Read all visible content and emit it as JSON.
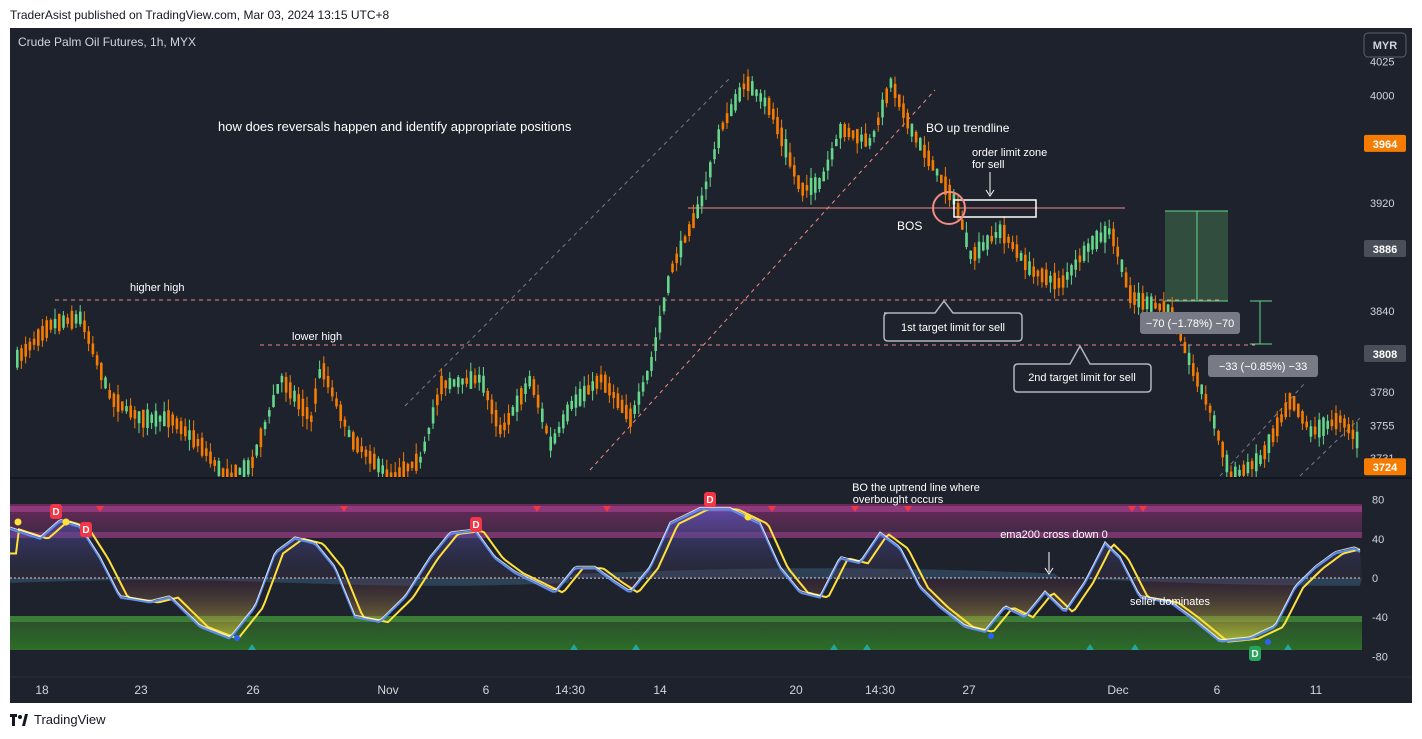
{
  "header": {
    "text": "TraderAsist published on TradingView.com, Mar 03, 2024 13:15 UTC+8"
  },
  "footer": {
    "brand": "TradingView"
  },
  "chart_data": {
    "type": "candlestick",
    "title": "Crude Palm Oil Futures, 1h, MYX",
    "currency": "MYR",
    "y_ticks": [
      4025,
      4000,
      3920,
      3840,
      3780,
      3755,
      3731
    ],
    "ylim": [
      3716,
      4050
    ],
    "x_ticks": [
      "18",
      "23",
      "26",
      "Nov",
      "6",
      "14:30",
      "14",
      "20",
      "14:30",
      "27",
      "Dec",
      "6",
      "11"
    ],
    "price_badges": [
      {
        "value": "3964",
        "color": "#f57c00"
      },
      {
        "value": "3886",
        "color": "#4a4e59"
      },
      {
        "value": "3808",
        "color": "#4a4e59"
      },
      {
        "value": "3724",
        "color": "#f57c00"
      }
    ],
    "annotations": {
      "headline": "how does reversals happen and identify appropriate positions",
      "higher_high": "higher high",
      "lower_high": "lower high",
      "bo_up_trendline": "BO up trendline",
      "order_zone_line1": "order limit zone",
      "order_zone_line2": "for sell",
      "bos": "BOS",
      "target1": "1st target limit for sell",
      "target2": "2nd target limit for sell",
      "measure1": "−70 (−1.78%) −70",
      "measure2": "−33 (−0.85%) −33"
    },
    "oscillator": {
      "y_ticks": [
        80,
        40,
        0,
        -40,
        -80
      ],
      "ylim": [
        -100,
        100
      ],
      "annotations": {
        "bo_line1": "BO the uptrend line where",
        "bo_line2": "overbought occurs",
        "ema": "ema200 cross down 0",
        "sellers": "seller dominates"
      },
      "signals": [
        "D",
        "D",
        "D",
        "D",
        "D"
      ]
    },
    "colors": {
      "up": "#66d68a",
      "down": "#f57c00",
      "background": "#1e222d",
      "text": "#d1d4dc"
    }
  }
}
